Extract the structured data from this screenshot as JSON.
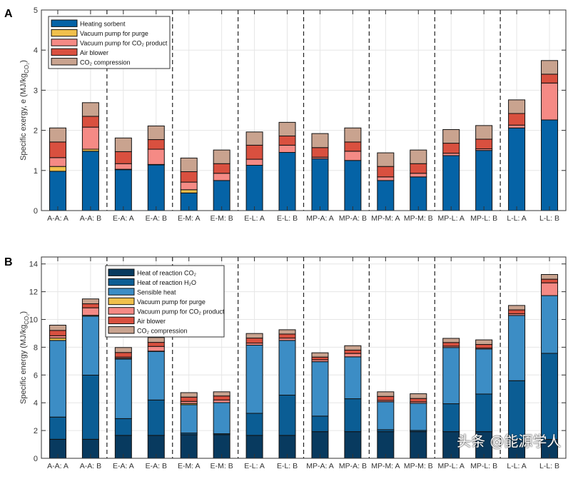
{
  "watermark": "头条 @能源学人",
  "chart_data": [
    {
      "panel_label": "A",
      "type": "bar",
      "stacked": true,
      "ylabel": [
        "Specific exergy, e (MJ/kg",
        "CO₂",
        ")"
      ],
      "ylim": [
        0,
        5
      ],
      "yticks": [
        0,
        1,
        2,
        3,
        4,
        5
      ],
      "grid": true,
      "legend_position": "top-left",
      "categories": [
        "A-A: A",
        "A-A: B",
        "E-A: A",
        "E-A: B",
        "E-M: A",
        "E-M: B",
        "E-L: A",
        "E-L: B",
        "MP-A: A",
        "MP-A: B",
        "MP-M: A",
        "MP-M: B",
        "MP-L: A",
        "MP-L: B",
        "L-L: A",
        "L-L: B"
      ],
      "group_separators_after": [
        2,
        4,
        6,
        8,
        10,
        12,
        14
      ],
      "series": [
        {
          "name": "Heating sorbent",
          "color": "#0563a6",
          "values": [
            0.98,
            1.48,
            1.02,
            1.14,
            0.44,
            0.75,
            1.13,
            1.45,
            1.29,
            1.25,
            0.75,
            0.84,
            1.37,
            1.5,
            2.06,
            2.26
          ]
        },
        {
          "name": "Vacuum pump for purge",
          "color": "#f0c04c",
          "values": [
            0.12,
            0.05,
            0.01,
            0.01,
            0.08,
            0,
            0,
            0,
            0,
            0,
            0,
            0,
            0,
            0,
            0,
            0
          ]
        },
        {
          "name": "Vacuum pump for CO₂ product",
          "color": "#f58a85",
          "values": [
            0.22,
            0.55,
            0.14,
            0.38,
            0.19,
            0.18,
            0.15,
            0.18,
            0.04,
            0.23,
            0.09,
            0.09,
            0.06,
            0.04,
            0.07,
            0.92
          ]
        },
        {
          "name": "Air blower",
          "color": "#d9503f",
          "values": [
            0.39,
            0.27,
            0.3,
            0.24,
            0.26,
            0.24,
            0.35,
            0.23,
            0.24,
            0.23,
            0.26,
            0.24,
            0.25,
            0.24,
            0.29,
            0.22
          ]
        },
        {
          "name": "CO₂ compression",
          "color": "#c9a38f",
          "values": [
            0.35,
            0.34,
            0.34,
            0.34,
            0.34,
            0.34,
            0.33,
            0.34,
            0.35,
            0.35,
            0.34,
            0.34,
            0.34,
            0.34,
            0.34,
            0.34
          ]
        }
      ]
    },
    {
      "panel_label": "B",
      "type": "bar",
      "stacked": true,
      "ylabel": [
        "Specific energy (MJ/kg",
        "CO₂",
        ")"
      ],
      "ylim": [
        0,
        14.5
      ],
      "yticks": [
        0,
        2,
        4,
        6,
        8,
        10,
        12,
        14
      ],
      "grid": true,
      "legend_position": "top-center",
      "categories": [
        "A-A: A",
        "A-A: B",
        "E-A: A",
        "E-A: B",
        "E-M: A",
        "E-M: B",
        "E-L: A",
        "E-L: B",
        "MP-A: A",
        "MP-A: B",
        "MP-M: A",
        "MP-M: B",
        "MP-L: A",
        "MP-L: B",
        "L-L: A",
        "L-L: B"
      ],
      "group_separators_after": [
        2,
        4,
        6,
        8,
        10,
        12,
        14
      ],
      "series": [
        {
          "name": "Heat of reaction CO₂",
          "color": "#083a5f",
          "values": [
            1.37,
            1.37,
            1.65,
            1.65,
            1.7,
            1.7,
            1.65,
            1.65,
            1.92,
            1.92,
            1.92,
            1.92,
            1.92,
            1.92,
            1.36,
            1.36
          ]
        },
        {
          "name": "Heat of reaction H₂O",
          "color": "#0b5d94",
          "values": [
            1.6,
            4.62,
            1.21,
            2.55,
            0.12,
            0.07,
            1.59,
            2.9,
            1.12,
            2.37,
            0.14,
            0.09,
            2.01,
            2.71,
            4.23,
            6.2
          ]
        },
        {
          "name": "Sensible heat",
          "color": "#3c8dc5",
          "values": [
            5.52,
            4.25,
            4.29,
            3.5,
            2.04,
            2.24,
            4.91,
            3.94,
            3.92,
            3.02,
            2.01,
            1.95,
            4.05,
            3.24,
            4.7,
            4.16
          ]
        },
        {
          "name": "Vacuum pump for purge",
          "color": "#f0c04c",
          "values": [
            0.17,
            0.06,
            0.05,
            0.02,
            0.09,
            0,
            0,
            0,
            0,
            0,
            0,
            0,
            0,
            0,
            0,
            0
          ]
        },
        {
          "name": "Vacuum pump for CO₂ product",
          "color": "#f58a85",
          "values": [
            0.17,
            0.54,
            0.09,
            0.34,
            0.15,
            0.19,
            0.15,
            0.17,
            0.14,
            0.24,
            0.1,
            0.11,
            0.1,
            0.07,
            0.12,
            0.92
          ]
        },
        {
          "name": "Air blower",
          "color": "#d9503f",
          "values": [
            0.38,
            0.29,
            0.33,
            0.29,
            0.31,
            0.29,
            0.36,
            0.29,
            0.19,
            0.24,
            0.29,
            0.24,
            0.26,
            0.26,
            0.28,
            0.26
          ]
        },
        {
          "name": "CO₂ compression",
          "color": "#c9a38f",
          "values": [
            0.38,
            0.35,
            0.36,
            0.35,
            0.32,
            0.3,
            0.33,
            0.31,
            0.31,
            0.32,
            0.33,
            0.34,
            0.3,
            0.33,
            0.32,
            0.34
          ]
        }
      ]
    }
  ]
}
